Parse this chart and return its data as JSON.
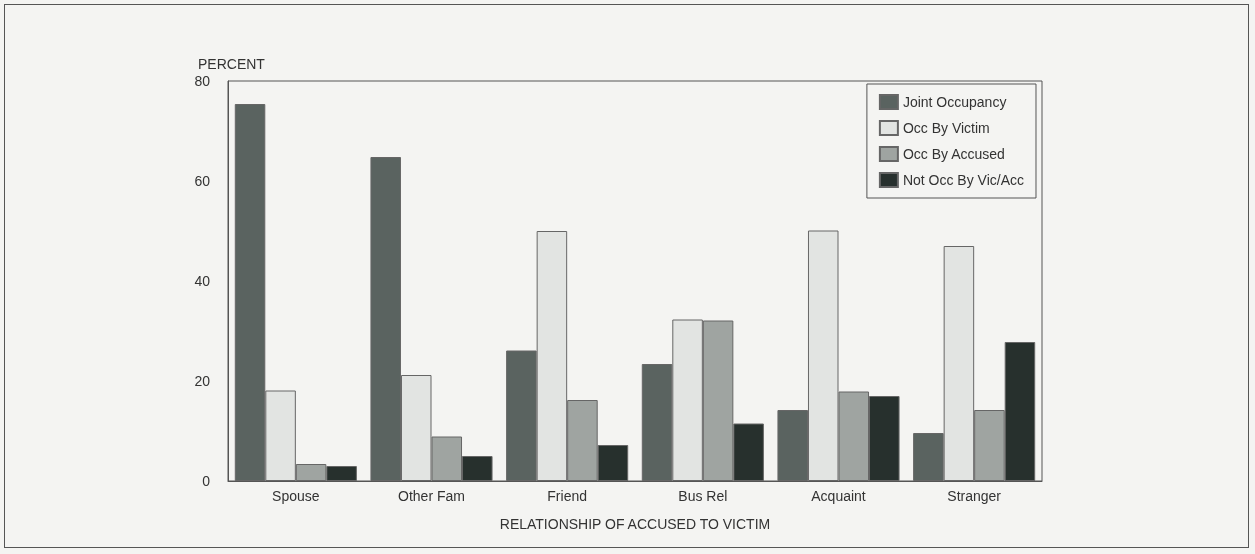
{
  "chart_data": {
    "type": "bar",
    "ylabel": "PERCENT",
    "xlabel": "RELATIONSHIP OF ACCUSED TO VICTIM",
    "categories": [
      "Spouse",
      "Other Fam",
      "Friend",
      "Bus Rel",
      "Acquaint",
      "Stranger"
    ],
    "series": [
      {
        "name": "Joint Occupancy",
        "color": "#5a6360",
        "values": [
          75.4,
          64.8,
          26.1,
          23.4,
          14.2,
          9.6
        ]
      },
      {
        "name": "Occ By Victim",
        "color": "#e2e4e2",
        "values": [
          18.1,
          21.2,
          50.0,
          32.3,
          50.1,
          47.0
        ]
      },
      {
        "name": "Occ By Accused",
        "color": "#9fa4a1",
        "values": [
          3.4,
          8.9,
          16.2,
          32.1,
          17.9,
          14.2
        ]
      },
      {
        "name": "Not Occ By Vic/Acc",
        "color": "#27302d",
        "values": [
          3.0,
          5.0,
          7.2,
          11.5,
          17.0,
          27.8
        ]
      }
    ],
    "ylim": [
      0,
      80
    ],
    "yticks": [
      0,
      20,
      40,
      60,
      80
    ],
    "grid": false,
    "legend": "top right"
  }
}
